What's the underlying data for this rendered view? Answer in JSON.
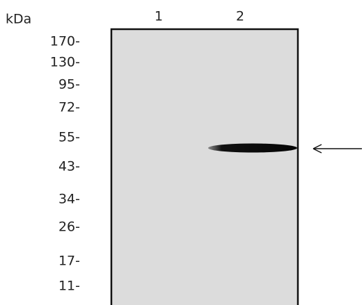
{
  "header": {
    "unit": "kDa",
    "lanes": [
      "1",
      "2"
    ]
  },
  "markers": [
    "170-",
    "130-",
    "95-",
    "72-",
    "55-",
    "43-",
    "34-",
    "26-",
    "17-",
    "11-"
  ]
}
